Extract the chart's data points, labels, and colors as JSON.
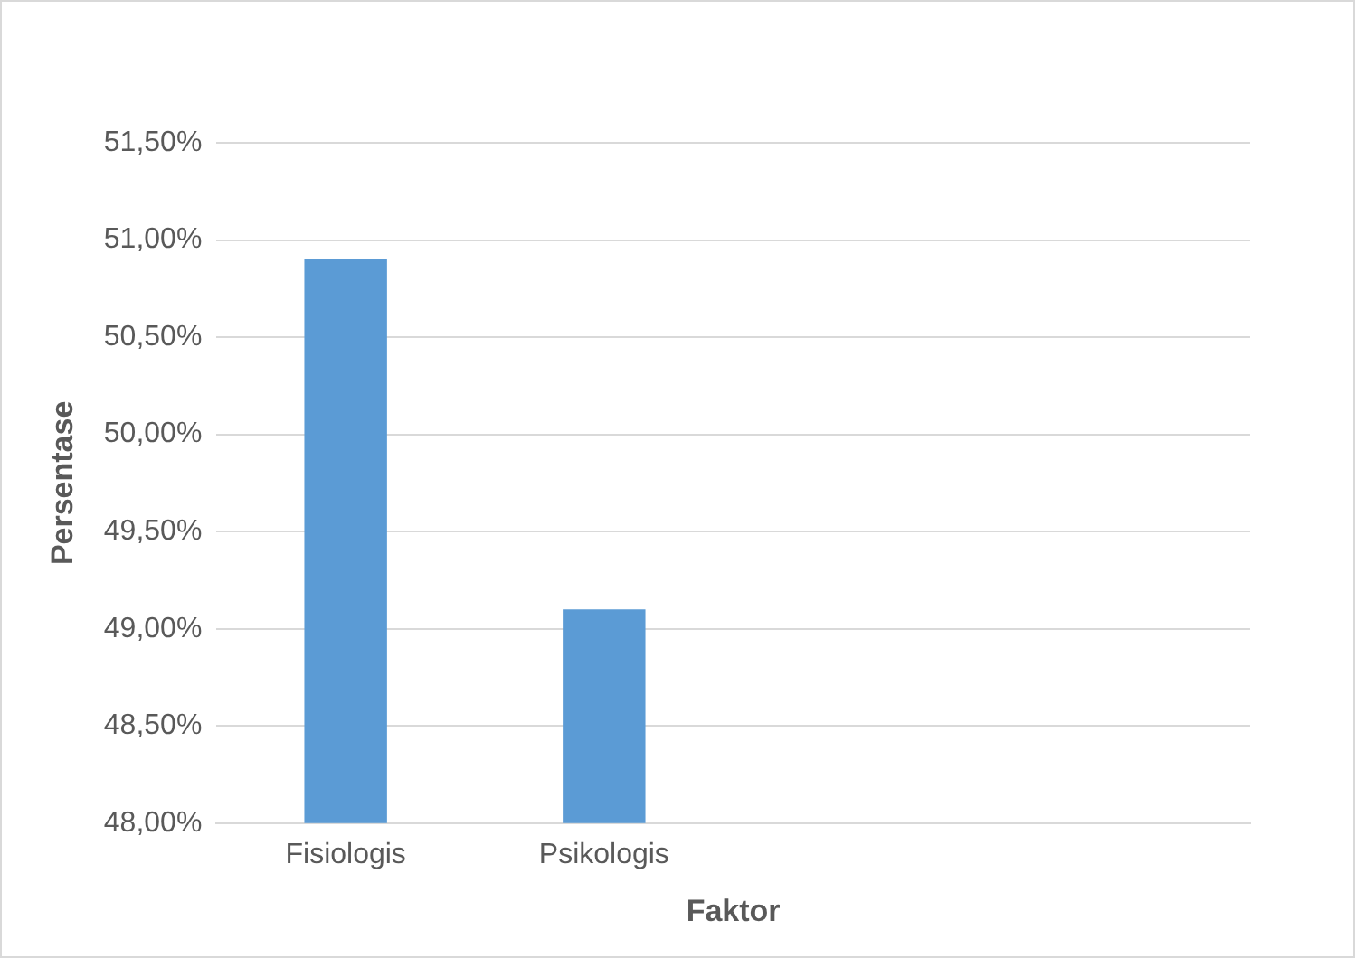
{
  "chart_data": {
    "type": "bar",
    "xlabel": "Faktor",
    "ylabel": "Persentase",
    "categories": [
      "Fisiologis",
      "Psikologis",
      null,
      null
    ],
    "values": [
      50.9,
      49.1,
      null,
      null
    ],
    "color": "#5b9bd5",
    "ylim": [
      48,
      51.5
    ],
    "yticks": [
      {
        "value": 48,
        "label": "48,00%"
      },
      {
        "value": 48.5,
        "label": "48,50%"
      },
      {
        "value": 49,
        "label": "49,00%"
      },
      {
        "value": 49.5,
        "label": "49,50%"
      },
      {
        "value": 50,
        "label": "50,00%"
      },
      {
        "value": 50.5,
        "label": "50,50%"
      },
      {
        "value": 51,
        "label": "51,00%"
      },
      {
        "value": 51.5,
        "label": "51,50%"
      }
    ],
    "grid": "y",
    "legend": false
  }
}
